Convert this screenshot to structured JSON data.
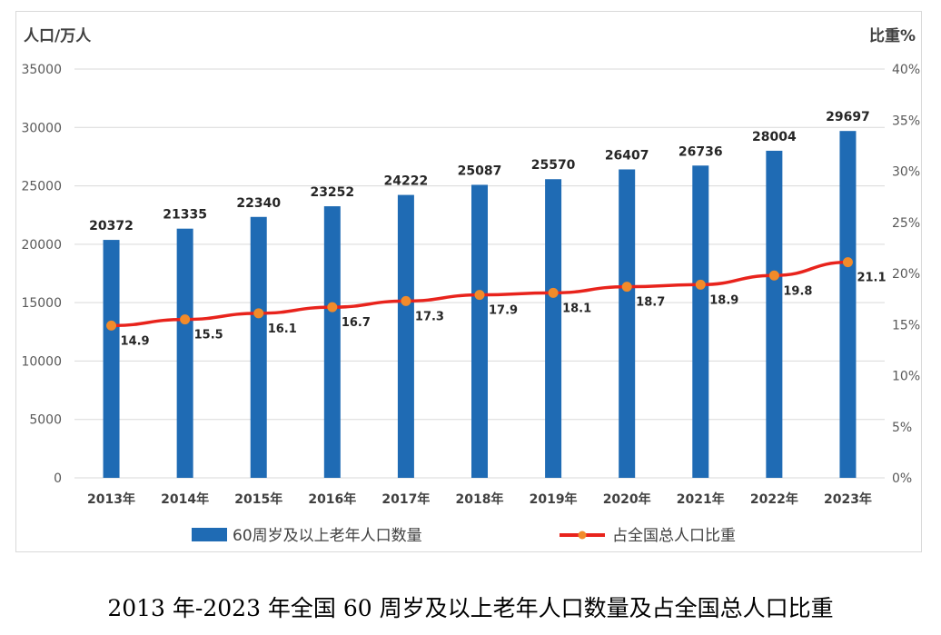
{
  "caption": "2013 年-2023 年全国 60 周岁及以上老年人口数量及占全国总人口比重",
  "colors": {
    "bar": "#1f6bb4",
    "line": "#e8231c",
    "marker": "#f28b2a",
    "grid": "#d9d9d9"
  },
  "chart_data": {
    "type": "bar",
    "categories": [
      "2013年",
      "2014年",
      "2015年",
      "2016年",
      "2017年",
      "2018年",
      "2019年",
      "2020年",
      "2021年",
      "2022年",
      "2023年"
    ],
    "series": [
      {
        "name": "60周岁及以上老年人口数量",
        "kind": "bar",
        "axis": "left",
        "values": [
          20372,
          21335,
          22340,
          23252,
          24222,
          25087,
          25570,
          26407,
          26736,
          28004,
          29697
        ]
      },
      {
        "name": "占全国总人口比重",
        "kind": "line",
        "axis": "right",
        "values": [
          14.9,
          15.5,
          16.1,
          16.7,
          17.3,
          17.9,
          18.1,
          18.7,
          18.9,
          19.8,
          21.1
        ]
      }
    ],
    "ylabel_left": "人口/万人",
    "ylabel_right": "比重%",
    "ylim_left": [
      0,
      35000
    ],
    "ylim_right": [
      0,
      40
    ],
    "yticks_left": [
      "0",
      "5000",
      "10000",
      "15000",
      "20000",
      "25000",
      "30000",
      "35000"
    ],
    "yticks_right": [
      "0%",
      "5%",
      "10%",
      "15%",
      "20%",
      "25%",
      "30%",
      "35%",
      "40%"
    ],
    "grid": true,
    "legend_position": "bottom"
  }
}
